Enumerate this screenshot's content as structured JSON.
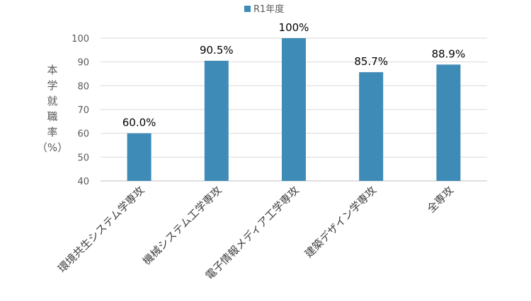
{
  "chart_data": {
    "type": "bar",
    "legend": {
      "label": "R1年度",
      "position": "top-center"
    },
    "categories": [
      "環境共生システム学専攻",
      "機械システム工学専攻",
      "電子情報メディア工学専攻",
      "建築デザイン学専攻",
      "全専攻"
    ],
    "series": [
      {
        "name": "R1年度",
        "values": [
          60.0,
          90.5,
          100,
          85.7,
          88.9
        ],
        "color": "#3F8BB7"
      }
    ],
    "data_labels": [
      "60.0%",
      "90.5%",
      "100%",
      "85.7%",
      "88.9%"
    ],
    "ylabel": [
      "本",
      "学",
      "就",
      "職",
      "率",
      "（%）"
    ],
    "ylim": [
      40,
      100
    ],
    "yticks": [
      40,
      50,
      60,
      70,
      80,
      90,
      100
    ],
    "grid": true,
    "colors": {
      "gridline": "#D9D9D9",
      "axis": "#BFBFBF"
    }
  }
}
